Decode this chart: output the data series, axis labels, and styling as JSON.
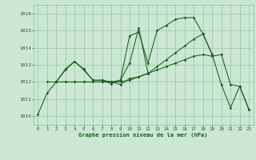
{
  "background_color": "#cce8d4",
  "grid_color": "#88bb99",
  "line_color": "#1a5c1a",
  "title": "Graphe pression niveau de la mer (hPa)",
  "xlim": [
    -0.5,
    23.5
  ],
  "ylim": [
    1009.5,
    1016.5
  ],
  "yticks": [
    1010,
    1011,
    1012,
    1013,
    1014,
    1015,
    1016
  ],
  "xticks": [
    0,
    1,
    2,
    3,
    4,
    5,
    6,
    7,
    8,
    9,
    10,
    11,
    12,
    13,
    14,
    15,
    16,
    17,
    18,
    19,
    20,
    21,
    22,
    23
  ],
  "series1_x": [
    0,
    1,
    2,
    3,
    4,
    5,
    6,
    7,
    8,
    9,
    10,
    11,
    12,
    13,
    14,
    15,
    16,
    17,
    18,
    19
  ],
  "series1_y": [
    1010.1,
    1011.35,
    1012.0,
    1012.7,
    1013.2,
    1012.7,
    1012.1,
    1012.1,
    1011.9,
    1012.1,
    1014.7,
    1014.9,
    1013.1,
    1015.0,
    1015.3,
    1015.65,
    1015.75,
    1015.75,
    1014.8,
    1013.6
  ],
  "series2_x": [
    2,
    3,
    4,
    5,
    6,
    7,
    8,
    9,
    10,
    11,
    12
  ],
  "series2_y": [
    1012.0,
    1012.75,
    1013.2,
    1012.75,
    1012.1,
    1012.1,
    1012.0,
    1012.1,
    1013.1,
    1015.15,
    1012.5
  ],
  "series3_x": [
    1,
    2,
    3,
    4,
    5,
    6,
    7,
    8,
    9,
    10,
    11,
    12,
    13,
    14,
    15,
    16,
    17,
    18,
    19,
    20,
    21,
    22,
    23
  ],
  "series3_y": [
    1012.0,
    1012.0,
    1012.0,
    1012.0,
    1012.0,
    1012.0,
    1012.0,
    1012.0,
    1012.0,
    1012.1,
    1012.3,
    1012.5,
    1012.7,
    1012.9,
    1013.1,
    1013.3,
    1013.5,
    1013.6,
    1013.5,
    1013.6,
    1011.85,
    1011.75,
    1010.4
  ],
  "series4_x": [
    2,
    3,
    4,
    5,
    6,
    7,
    8,
    9,
    10,
    11,
    12,
    13,
    14,
    15,
    16,
    17,
    18,
    19,
    20,
    21,
    22,
    23
  ],
  "series4_y": [
    1012.0,
    1012.0,
    1012.0,
    1012.0,
    1012.0,
    1012.0,
    1012.0,
    1011.85,
    1012.2,
    1012.3,
    1012.5,
    1012.9,
    1013.3,
    1013.7,
    1014.1,
    1014.5,
    1014.8,
    1013.6,
    1011.85,
    1010.5,
    1011.75,
    1010.4
  ]
}
